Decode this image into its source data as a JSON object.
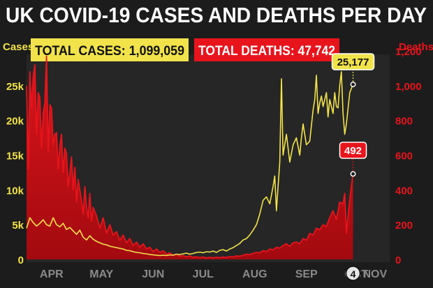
{
  "chart_data": {
    "type": "line",
    "title": "UK COVID-19 CASES AND DEATHS PER DAY",
    "left_axis_label": "Cases",
    "right_axis_label": "Deaths",
    "total_cases_label": "TOTAL CASES: 1,099,059",
    "total_deaths_label": "TOTAL DEATHS: 47,742",
    "month_labels": [
      "APR",
      "MAY",
      "JUN",
      "JUL",
      "AUG",
      "SEP",
      "OCT"
    ],
    "nov_day": "4",
    "nov_label": "NOV",
    "cases_ticks": [
      "0",
      "5k",
      "10k",
      "15k",
      "20k",
      "25k"
    ],
    "deaths_ticks": [
      "0",
      "200",
      "400",
      "600",
      "800",
      "1,000",
      "1,200"
    ],
    "cases_ylim": [
      0,
      29500
    ],
    "deaths_ylim": [
      0,
      1180
    ],
    "x_range_days": [
      0,
      218
    ],
    "cases_end_label": "25,177",
    "deaths_end_label": "492",
    "series": [
      {
        "name": "Cases",
        "color": "#f2e34b",
        "values": [
          [
            0,
            4500
          ],
          [
            2,
            6000
          ],
          [
            4,
            5300
          ],
          [
            6,
            4800
          ],
          [
            8,
            5200
          ],
          [
            10,
            5700
          ],
          [
            12,
            5000
          ],
          [
            14,
            4800
          ],
          [
            16,
            6000
          ],
          [
            18,
            5000
          ],
          [
            20,
            4700
          ],
          [
            22,
            5200
          ],
          [
            24,
            4300
          ],
          [
            26,
            4600
          ],
          [
            28,
            4100
          ],
          [
            30,
            3600
          ],
          [
            32,
            4200
          ],
          [
            34,
            3200
          ],
          [
            36,
            2800
          ],
          [
            38,
            3400
          ],
          [
            40,
            2900
          ],
          [
            42,
            2600
          ],
          [
            44,
            2400
          ],
          [
            46,
            2200
          ],
          [
            48,
            2100
          ],
          [
            50,
            1900
          ],
          [
            52,
            1800
          ],
          [
            54,
            1700
          ],
          [
            56,
            1600
          ],
          [
            58,
            1500
          ],
          [
            60,
            1300
          ],
          [
            62,
            1250
          ],
          [
            64,
            1100
          ],
          [
            66,
            1000
          ],
          [
            68,
            950
          ],
          [
            70,
            850
          ],
          [
            72,
            800
          ],
          [
            74,
            700
          ],
          [
            76,
            650
          ],
          [
            78,
            600
          ],
          [
            80,
            550
          ],
          [
            82,
            600
          ],
          [
            84,
            550
          ],
          [
            86,
            650
          ],
          [
            88,
            600
          ],
          [
            90,
            750
          ],
          [
            92,
            700
          ],
          [
            94,
            800
          ],
          [
            96,
            900
          ],
          [
            98,
            750
          ],
          [
            100,
            850
          ],
          [
            102,
            1000
          ],
          [
            104,
            1050
          ],
          [
            106,
            950
          ],
          [
            108,
            1100
          ],
          [
            110,
            1050
          ],
          [
            112,
            1200
          ],
          [
            114,
            1000
          ],
          [
            116,
            1300
          ],
          [
            118,
            1400
          ],
          [
            120,
            1200
          ],
          [
            122,
            1500
          ],
          [
            124,
            1700
          ],
          [
            126,
            2000
          ],
          [
            128,
            2300
          ],
          [
            130,
            2800
          ],
          [
            132,
            3000
          ],
          [
            134,
            3500
          ],
          [
            136,
            4200
          ],
          [
            138,
            5000
          ],
          [
            140,
            6500
          ],
          [
            142,
            8500
          ],
          [
            144,
            9000
          ],
          [
            146,
            8000
          ],
          [
            148,
            10500
          ],
          [
            149,
            12000
          ],
          [
            150,
            7000
          ],
          [
            152,
            14000
          ],
          [
            153,
            26000
          ],
          [
            154,
            15000
          ],
          [
            156,
            18000
          ],
          [
            158,
            14000
          ],
          [
            160,
            16500
          ],
          [
            162,
            17500
          ],
          [
            164,
            15000
          ],
          [
            165,
            17500
          ],
          [
            166,
            19500
          ],
          [
            168,
            16500
          ],
          [
            170,
            17000
          ],
          [
            172,
            21500
          ],
          [
            173,
            23000
          ],
          [
            174,
            26500
          ],
          [
            175,
            21000
          ],
          [
            176,
            22500
          ],
          [
            177,
            23500
          ],
          [
            178,
            22000
          ],
          [
            180,
            24000
          ],
          [
            181,
            20500
          ],
          [
            182,
            23000
          ],
          [
            184,
            21000
          ],
          [
            185,
            24000
          ],
          [
            186,
            22000
          ],
          [
            187,
            21800
          ],
          [
            188,
            25000
          ],
          [
            189,
            27000
          ],
          [
            190,
            21000
          ],
          [
            191,
            18000
          ],
          [
            192,
            19500
          ],
          [
            194,
            24000
          ],
          [
            196,
            25177
          ]
        ]
      },
      {
        "name": "Deaths",
        "color": "#e8141c",
        "values": [
          [
            0,
            1000
          ],
          [
            1,
            520
          ],
          [
            2,
            1080
          ],
          [
            3,
            870
          ],
          [
            4,
            1050
          ],
          [
            5,
            1120
          ],
          [
            6,
            720
          ],
          [
            7,
            960
          ],
          [
            8,
            930
          ],
          [
            9,
            640
          ],
          [
            10,
            850
          ],
          [
            11,
            900
          ],
          [
            12,
            1170
          ],
          [
            13,
            620
          ],
          [
            14,
            890
          ],
          [
            15,
            870
          ],
          [
            16,
            660
          ],
          [
            17,
            720
          ],
          [
            18,
            730
          ],
          [
            19,
            520
          ],
          [
            20,
            650
          ],
          [
            21,
            720
          ],
          [
            22,
            500
          ],
          [
            23,
            640
          ],
          [
            24,
            610
          ],
          [
            25,
            420
          ],
          [
            26,
            500
          ],
          [
            27,
            590
          ],
          [
            28,
            400
          ],
          [
            29,
            530
          ],
          [
            30,
            330
          ],
          [
            31,
            460
          ],
          [
            32,
            400
          ],
          [
            33,
            340
          ],
          [
            34,
            260
          ],
          [
            35,
            420
          ],
          [
            36,
            300
          ],
          [
            37,
            240
          ],
          [
            38,
            380
          ],
          [
            39,
            220
          ],
          [
            40,
            300
          ],
          [
            42,
            250
          ],
          [
            44,
            180
          ],
          [
            46,
            240
          ],
          [
            48,
            150
          ],
          [
            50,
            200
          ],
          [
            52,
            140
          ],
          [
            54,
            160
          ],
          [
            56,
            110
          ],
          [
            58,
            140
          ],
          [
            60,
            95
          ],
          [
            62,
            120
          ],
          [
            64,
            80
          ],
          [
            66,
            100
          ],
          [
            68,
            70
          ],
          [
            70,
            90
          ],
          [
            72,
            60
          ],
          [
            74,
            70
          ],
          [
            76,
            45
          ],
          [
            78,
            60
          ],
          [
            80,
            40
          ],
          [
            82,
            50
          ],
          [
            84,
            30
          ],
          [
            86,
            38
          ],
          [
            88,
            25
          ],
          [
            90,
            30
          ],
          [
            92,
            18
          ],
          [
            94,
            22
          ],
          [
            96,
            15
          ],
          [
            98,
            20
          ],
          [
            100,
            12
          ],
          [
            102,
            15
          ],
          [
            104,
            10
          ],
          [
            106,
            14
          ],
          [
            108,
            8
          ],
          [
            110,
            12
          ],
          [
            112,
            9
          ],
          [
            114,
            12
          ],
          [
            116,
            10
          ],
          [
            118,
            14
          ],
          [
            120,
            11
          ],
          [
            122,
            16
          ],
          [
            124,
            14
          ],
          [
            126,
            20
          ],
          [
            128,
            18
          ],
          [
            130,
            24
          ],
          [
            132,
            30
          ],
          [
            134,
            28
          ],
          [
            136,
            35
          ],
          [
            138,
            40
          ],
          [
            140,
            38
          ],
          [
            142,
            50
          ],
          [
            144,
            45
          ],
          [
            146,
            60
          ],
          [
            148,
            55
          ],
          [
            150,
            70
          ],
          [
            152,
            65
          ],
          [
            154,
            80
          ],
          [
            156,
            90
          ],
          [
            158,
            75
          ],
          [
            160,
            95
          ],
          [
            162,
            100
          ],
          [
            164,
            90
          ],
          [
            166,
            120
          ],
          [
            168,
            110
          ],
          [
            170,
            150
          ],
          [
            172,
            140
          ],
          [
            174,
            180
          ],
          [
            176,
            170
          ],
          [
            178,
            200
          ],
          [
            180,
            190
          ],
          [
            182,
            240
          ],
          [
            184,
            280
          ],
          [
            186,
            230
          ],
          [
            188,
            330
          ],
          [
            190,
            320
          ],
          [
            191,
            380
          ],
          [
            192,
            150
          ],
          [
            194,
            350
          ],
          [
            196,
            492
          ]
        ]
      }
    ]
  }
}
